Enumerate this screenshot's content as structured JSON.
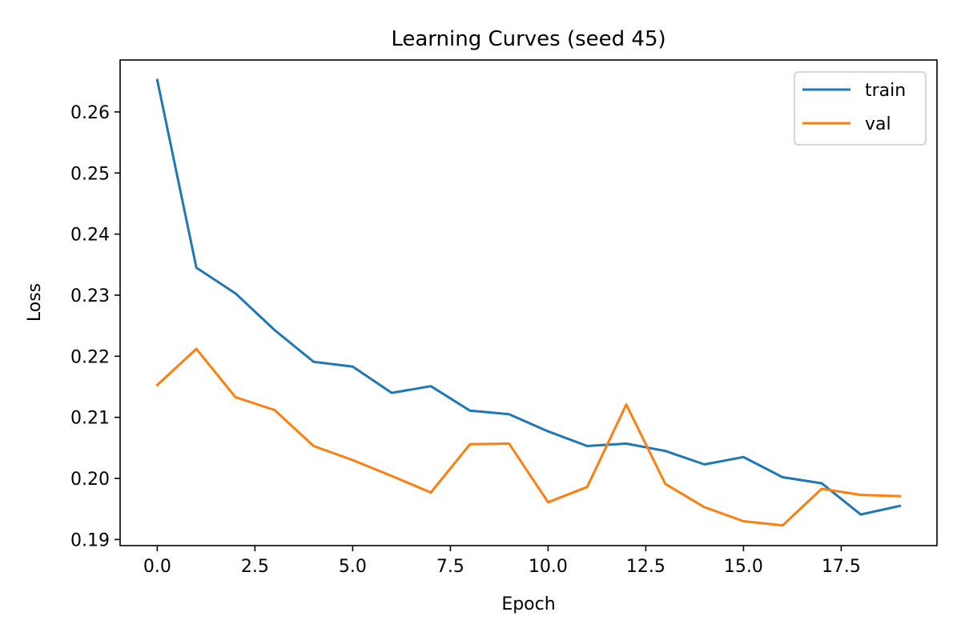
{
  "chart_data": {
    "type": "line",
    "title": "Learning Curves (seed 45)",
    "xlabel": "Epoch",
    "ylabel": "Loss",
    "xlim": [
      -0.95,
      19.95
    ],
    "ylim": [
      0.189,
      0.2685
    ],
    "xticks": [
      0.0,
      2.5,
      5.0,
      7.5,
      10.0,
      12.5,
      15.0,
      17.5
    ],
    "xtick_labels": [
      "0.0",
      "2.5",
      "5.0",
      "7.5",
      "10.0",
      "12.5",
      "15.0",
      "17.5"
    ],
    "yticks": [
      0.19,
      0.2,
      0.21,
      0.22,
      0.23,
      0.24,
      0.25,
      0.26
    ],
    "ytick_labels": [
      "0.19",
      "0.20",
      "0.21",
      "0.22",
      "0.23",
      "0.24",
      "0.25",
      "0.26"
    ],
    "grid": false,
    "legend_position": "top-right",
    "x": [
      0,
      1,
      2,
      3,
      4,
      5,
      6,
      7,
      8,
      9,
      10,
      11,
      12,
      13,
      14,
      15,
      16,
      17,
      18,
      19
    ],
    "series": [
      {
        "name": "train",
        "color": "#1f77b4",
        "values": [
          0.2652,
          0.2345,
          0.2303,
          0.2243,
          0.2191,
          0.2183,
          0.214,
          0.2151,
          0.2111,
          0.2105,
          0.2077,
          0.2053,
          0.2057,
          0.2045,
          0.2023,
          0.2035,
          0.2002,
          0.1992,
          0.1941,
          0.1955
        ]
      },
      {
        "name": "val",
        "color": "#ff7f0e",
        "values": [
          0.2153,
          0.2212,
          0.2133,
          0.2112,
          0.2053,
          0.203,
          0.2004,
          0.1977,
          0.2056,
          0.2057,
          0.1961,
          0.1986,
          0.2121,
          0.1991,
          0.1953,
          0.193,
          0.1923,
          0.1983,
          0.1973,
          0.1971
        ]
      }
    ]
  }
}
